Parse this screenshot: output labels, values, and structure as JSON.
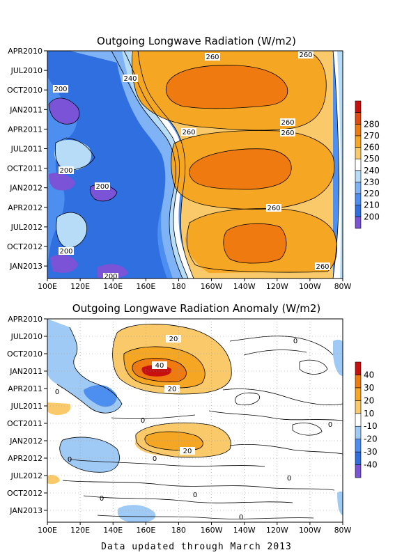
{
  "footer": "Data updated through March 2013",
  "chart_data": [
    {
      "type": "heatmap",
      "title": "Outgoing Longwave Radiation (W/m2)",
      "x_ticks": [
        "100E",
        "120E",
        "140E",
        "160E",
        "180",
        "160W",
        "140W",
        "120W",
        "100W",
        "80W"
      ],
      "y_ticks": [
        "APR2010",
        "JUL2010",
        "OCT2010",
        "JAN2011",
        "APR2011",
        "JUL2011",
        "OCT2011",
        "JAN2012",
        "APR2012",
        "JUL2012",
        "OCT2012",
        "JAN2013"
      ],
      "colorbar": {
        "levels": [
          "200",
          "210",
          "220",
          "230",
          "240",
          "250",
          "260",
          "270",
          "280"
        ],
        "colors": [
          "#7b53d6",
          "#2f6fe0",
          "#4d8ff0",
          "#7fb3f5",
          "#b7dcf8",
          "#ffffff",
          "#f9c96a",
          "#f5a623",
          "#ef7a10",
          "#e04b10",
          "#c81010"
        ]
      },
      "contour_labels": [
        "260",
        "260",
        "240",
        "200",
        "260",
        "260",
        "260",
        "200",
        "200",
        "260",
        "200",
        "260",
        "200"
      ]
    },
    {
      "type": "heatmap",
      "title": "Outgoing Longwave Radiation Anomaly (W/m2)",
      "x_ticks": [
        "100E",
        "120E",
        "140E",
        "160E",
        "180",
        "160W",
        "140W",
        "120W",
        "100W",
        "80W"
      ],
      "y_ticks": [
        "APR2010",
        "JUL2010",
        "OCT2010",
        "JAN2011",
        "APR2011",
        "JUL2011",
        "OCT2011",
        "JAN2012",
        "APR2012",
        "JUL2012",
        "OCT2012",
        "JAN2013"
      ],
      "colorbar": {
        "levels": [
          "-40",
          "-30",
          "-20",
          "-10",
          "10",
          "20",
          "30",
          "40"
        ],
        "colors": [
          "#7b53d6",
          "#2f6fe0",
          "#4d8ff0",
          "#9fcaf5",
          "#ffffff",
          "#f9c96a",
          "#f5a623",
          "#ef7a10",
          "#c81010"
        ]
      },
      "contour_labels": [
        "20",
        "40",
        "20",
        "20",
        "0",
        "0",
        "0",
        "0",
        "0",
        "0",
        "0",
        "0",
        "0",
        "0"
      ]
    }
  ]
}
